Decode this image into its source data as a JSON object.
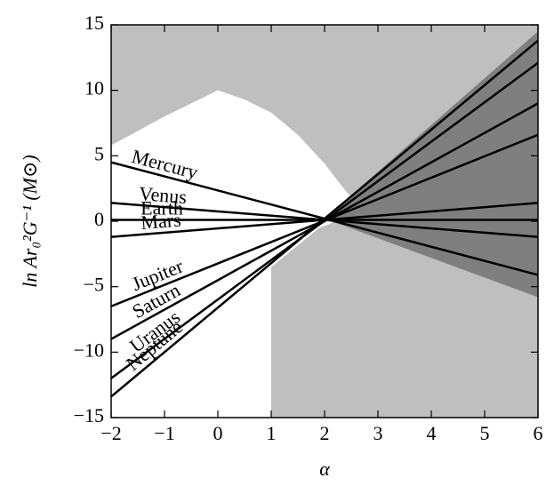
{
  "chart_data": {
    "type": "line",
    "xlabel": "α",
    "ylabel": "ln Ar₀²G⁻¹ (M⊙)",
    "x": [
      -2,
      6
    ],
    "series": [
      {
        "name": "Mercury",
        "color": "#000000",
        "values": [
          4.5,
          -4.1
        ]
      },
      {
        "name": "Venus",
        "color": "#000000",
        "values": [
          1.4,
          -1.2
        ]
      },
      {
        "name": "Earth",
        "color": "#000000",
        "values": [
          0.1,
          0.1
        ]
      },
      {
        "name": "Mars",
        "color": "#000000",
        "values": [
          -1.2,
          1.4
        ]
      },
      {
        "name": "Jupiter",
        "color": "#000000",
        "values": [
          -6.5,
          6.6
        ]
      },
      {
        "name": "Saturn",
        "color": "#000000",
        "values": [
          -9.0,
          9.0
        ]
      },
      {
        "name": "Uranus",
        "color": "#000000",
        "values": [
          -12.0,
          12.1
        ]
      },
      {
        "name": "Neptune",
        "color": "#000000",
        "values": [
          -13.4,
          13.8
        ]
      }
    ],
    "background_color": "#bfbfbf",
    "shaded_regions": [
      {
        "color": "#ffffff",
        "x": [
          -2,
          -2,
          -1,
          0,
          0.5,
          1,
          1.5,
          2,
          2.3,
          2.6,
          2.1,
          1.9,
          1,
          1
        ],
        "y": [
          -15,
          5.8,
          8.0,
          10,
          9.3,
          8.3,
          6.6,
          4.4,
          2.8,
          1.3,
          -0.2,
          -0.5,
          -3.5,
          -15
        ]
      },
      {
        "color": "#7f7f7f",
        "x": [
          2,
          6,
          6
        ],
        "y": [
          0.2,
          14.5,
          -5.8
        ]
      }
    ],
    "xlim": [
      -2,
      6
    ],
    "xticks": [
      {
        "value": -2,
        "label": "−2"
      },
      {
        "value": -1,
        "label": "−1"
      },
      0,
      1,
      2,
      3,
      4,
      5,
      6
    ],
    "ylim": [
      -15,
      15
    ],
    "yticks": [
      {
        "value": -15,
        "label": "−15"
      },
      {
        "value": -10,
        "label": "−10"
      },
      {
        "value": -5,
        "label": "−5"
      },
      0,
      5,
      10,
      15
    ]
  }
}
